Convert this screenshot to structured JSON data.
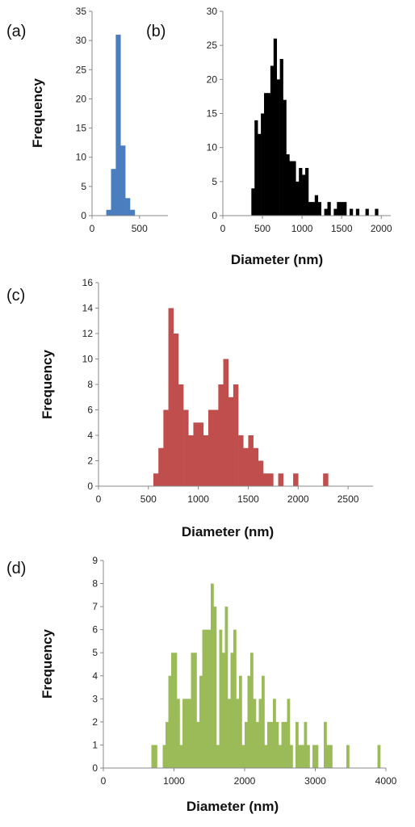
{
  "chart_data": [
    {
      "type": "bar",
      "panel_label": "(a)",
      "ylabel": "Frequency",
      "xlabel": "",
      "xlim": [
        0,
        800
      ],
      "ylim": [
        0,
        35
      ],
      "xticks": [
        0,
        500
      ],
      "yticks": [
        0,
        5,
        10,
        15,
        20,
        25,
        30,
        35
      ],
      "bin_width": 50,
      "bins": [
        {
          "x": 150,
          "count": 1
        },
        {
          "x": 200,
          "count": 8
        },
        {
          "x": 250,
          "count": 31
        },
        {
          "x": 300,
          "count": 12
        },
        {
          "x": 350,
          "count": 3
        },
        {
          "x": 400,
          "count": 1
        }
      ],
      "color": "#4a7ebf"
    },
    {
      "type": "bar",
      "panel_label": "(b)",
      "ylabel": "",
      "xlabel": "Diameter (nm)",
      "xlim": [
        0,
        2000
      ],
      "ylim": [
        0,
        30
      ],
      "xticks": [
        0,
        500,
        1000,
        1500,
        2000
      ],
      "yticks": [
        0,
        5,
        10,
        15,
        20,
        25,
        30
      ],
      "bin_width": 40,
      "bins": [
        {
          "x": 360,
          "count": 4
        },
        {
          "x": 400,
          "count": 14
        },
        {
          "x": 440,
          "count": 12
        },
        {
          "x": 480,
          "count": 15
        },
        {
          "x": 520,
          "count": 18
        },
        {
          "x": 560,
          "count": 18
        },
        {
          "x": 600,
          "count": 22
        },
        {
          "x": 640,
          "count": 26
        },
        {
          "x": 680,
          "count": 20
        },
        {
          "x": 720,
          "count": 23
        },
        {
          "x": 760,
          "count": 17
        },
        {
          "x": 800,
          "count": 9
        },
        {
          "x": 840,
          "count": 8
        },
        {
          "x": 880,
          "count": 8
        },
        {
          "x": 920,
          "count": 5
        },
        {
          "x": 960,
          "count": 7
        },
        {
          "x": 1000,
          "count": 6
        },
        {
          "x": 1040,
          "count": 7
        },
        {
          "x": 1080,
          "count": 2
        },
        {
          "x": 1120,
          "count": 2
        },
        {
          "x": 1160,
          "count": 3
        },
        {
          "x": 1200,
          "count": 2
        },
        {
          "x": 1280,
          "count": 1
        },
        {
          "x": 1320,
          "count": 2
        },
        {
          "x": 1400,
          "count": 1
        },
        {
          "x": 1440,
          "count": 2
        },
        {
          "x": 1480,
          "count": 2
        },
        {
          "x": 1520,
          "count": 2
        },
        {
          "x": 1600,
          "count": 1
        },
        {
          "x": 1680,
          "count": 1
        },
        {
          "x": 1800,
          "count": 1
        },
        {
          "x": 1920,
          "count": 1
        }
      ],
      "color": "#000000"
    },
    {
      "type": "bar",
      "panel_label": "(c)",
      "ylabel": "Frequency",
      "xlabel": "Diameter (nm)",
      "xlim": [
        0,
        2750
      ],
      "ylim": [
        0,
        16
      ],
      "xticks": [
        0,
        500,
        1000,
        1500,
        2000,
        2500
      ],
      "yticks": [
        0,
        2,
        4,
        6,
        8,
        10,
        12,
        14,
        16
      ],
      "bin_width": 50,
      "bins": [
        {
          "x": 550,
          "count": 1
        },
        {
          "x": 600,
          "count": 3
        },
        {
          "x": 650,
          "count": 6
        },
        {
          "x": 700,
          "count": 14
        },
        {
          "x": 750,
          "count": 12
        },
        {
          "x": 800,
          "count": 8
        },
        {
          "x": 850,
          "count": 6
        },
        {
          "x": 900,
          "count": 4
        },
        {
          "x": 950,
          "count": 5
        },
        {
          "x": 1000,
          "count": 5
        },
        {
          "x": 1050,
          "count": 4
        },
        {
          "x": 1100,
          "count": 6
        },
        {
          "x": 1150,
          "count": 6
        },
        {
          "x": 1200,
          "count": 8
        },
        {
          "x": 1250,
          "count": 10
        },
        {
          "x": 1300,
          "count": 7
        },
        {
          "x": 1350,
          "count": 8
        },
        {
          "x": 1400,
          "count": 4
        },
        {
          "x": 1450,
          "count": 3
        },
        {
          "x": 1500,
          "count": 4
        },
        {
          "x": 1550,
          "count": 3
        },
        {
          "x": 1600,
          "count": 2
        },
        {
          "x": 1650,
          "count": 1
        },
        {
          "x": 1700,
          "count": 1
        },
        {
          "x": 1800,
          "count": 1
        },
        {
          "x": 1950,
          "count": 1
        },
        {
          "x": 2250,
          "count": 1
        }
      ],
      "color": "#bf4e4c"
    },
    {
      "type": "bar",
      "panel_label": "(d)",
      "ylabel": "Frequency",
      "xlabel": "Diameter (nm)",
      "xlim": [
        0,
        4000
      ],
      "ylim": [
        0,
        9
      ],
      "xticks": [
        0,
        1000,
        2000,
        3000,
        4000
      ],
      "yticks": [
        0,
        1,
        2,
        3,
        4,
        5,
        6,
        7,
        8,
        9
      ],
      "bin_width": 40,
      "bins": [
        {
          "x": 680,
          "count": 1
        },
        {
          "x": 720,
          "count": 1
        },
        {
          "x": 840,
          "count": 1
        },
        {
          "x": 880,
          "count": 2
        },
        {
          "x": 920,
          "count": 4
        },
        {
          "x": 960,
          "count": 5
        },
        {
          "x": 1000,
          "count": 5
        },
        {
          "x": 1040,
          "count": 3
        },
        {
          "x": 1080,
          "count": 1
        },
        {
          "x": 1120,
          "count": 3
        },
        {
          "x": 1160,
          "count": 3
        },
        {
          "x": 1200,
          "count": 3
        },
        {
          "x": 1240,
          "count": 5
        },
        {
          "x": 1280,
          "count": 5
        },
        {
          "x": 1320,
          "count": 2
        },
        {
          "x": 1360,
          "count": 4
        },
        {
          "x": 1400,
          "count": 6
        },
        {
          "x": 1440,
          "count": 6
        },
        {
          "x": 1480,
          "count": 6
        },
        {
          "x": 1520,
          "count": 8
        },
        {
          "x": 1560,
          "count": 7
        },
        {
          "x": 1600,
          "count": 1
        },
        {
          "x": 1640,
          "count": 6
        },
        {
          "x": 1680,
          "count": 5
        },
        {
          "x": 1720,
          "count": 7
        },
        {
          "x": 1760,
          "count": 3
        },
        {
          "x": 1800,
          "count": 5
        },
        {
          "x": 1840,
          "count": 6
        },
        {
          "x": 1880,
          "count": 3
        },
        {
          "x": 1920,
          "count": 4
        },
        {
          "x": 1960,
          "count": 1
        },
        {
          "x": 2000,
          "count": 2
        },
        {
          "x": 2040,
          "count": 4
        },
        {
          "x": 2080,
          "count": 5
        },
        {
          "x": 2120,
          "count": 3
        },
        {
          "x": 2160,
          "count": 2
        },
        {
          "x": 2200,
          "count": 3
        },
        {
          "x": 2240,
          "count": 4
        },
        {
          "x": 2280,
          "count": 1
        },
        {
          "x": 2320,
          "count": 2
        },
        {
          "x": 2360,
          "count": 2
        },
        {
          "x": 2400,
          "count": 3
        },
        {
          "x": 2440,
          "count": 2
        },
        {
          "x": 2480,
          "count": 1
        },
        {
          "x": 2520,
          "count": 2
        },
        {
          "x": 2560,
          "count": 2
        },
        {
          "x": 2600,
          "count": 3
        },
        {
          "x": 2640,
          "count": 1
        },
        {
          "x": 2720,
          "count": 2
        },
        {
          "x": 2760,
          "count": 1
        },
        {
          "x": 2800,
          "count": 1
        },
        {
          "x": 2840,
          "count": 2
        },
        {
          "x": 2880,
          "count": 1
        },
        {
          "x": 2960,
          "count": 1
        },
        {
          "x": 3000,
          "count": 1
        },
        {
          "x": 3120,
          "count": 2
        },
        {
          "x": 3160,
          "count": 1
        },
        {
          "x": 3200,
          "count": 1
        },
        {
          "x": 3440,
          "count": 1
        },
        {
          "x": 3880,
          "count": 1
        }
      ],
      "color": "#9bbb59"
    }
  ]
}
